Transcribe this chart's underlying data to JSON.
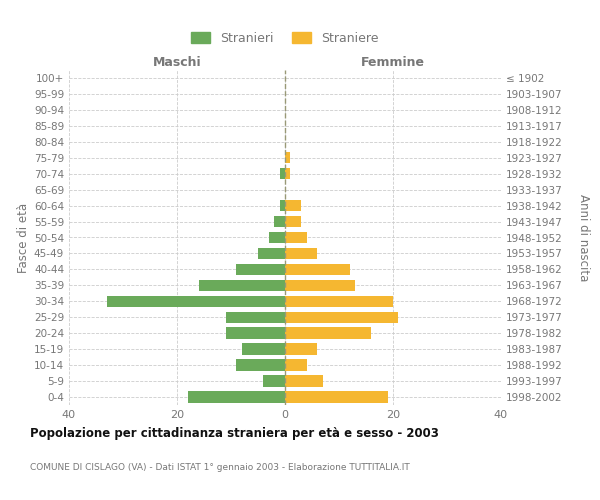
{
  "age_groups_bottom_to_top": [
    "0-4",
    "5-9",
    "10-14",
    "15-19",
    "20-24",
    "25-29",
    "30-34",
    "35-39",
    "40-44",
    "45-49",
    "50-54",
    "55-59",
    "60-64",
    "65-69",
    "70-74",
    "75-79",
    "80-84",
    "85-89",
    "90-94",
    "95-99",
    "100+"
  ],
  "birth_years_bottom_to_top": [
    "1998-2002",
    "1993-1997",
    "1988-1992",
    "1983-1987",
    "1978-1982",
    "1973-1977",
    "1968-1972",
    "1963-1967",
    "1958-1962",
    "1953-1957",
    "1948-1952",
    "1943-1947",
    "1938-1942",
    "1933-1937",
    "1928-1932",
    "1923-1927",
    "1918-1922",
    "1913-1917",
    "1908-1912",
    "1903-1907",
    "≤ 1902"
  ],
  "males_bottom_to_top": [
    18,
    4,
    9,
    8,
    11,
    11,
    33,
    16,
    9,
    5,
    3,
    2,
    1,
    0,
    1,
    0,
    0,
    0,
    0,
    0,
    0
  ],
  "females_bottom_to_top": [
    19,
    7,
    4,
    6,
    16,
    21,
    20,
    13,
    12,
    6,
    4,
    3,
    3,
    0,
    1,
    1,
    0,
    0,
    0,
    0,
    0
  ],
  "male_color": "#6aaa5a",
  "female_color": "#f5b731",
  "male_label": "Stranieri",
  "female_label": "Straniere",
  "title1": "Popolazione per cittadinanza straniera per età e sesso - 2003",
  "title2": "COMUNE DI CISLAGO (VA) - Dati ISTAT 1° gennaio 2003 - Elaborazione TUTTITALIA.IT",
  "col_left": "Maschi",
  "col_right": "Femmine",
  "ylabel_left": "Fasce di età",
  "ylabel_right": "Anni di nascita",
  "xlim": 40,
  "background_color": "#ffffff",
  "grid_color": "#cccccc",
  "center_line_color": "#999977",
  "text_color": "#777777",
  "title_color": "#111111"
}
